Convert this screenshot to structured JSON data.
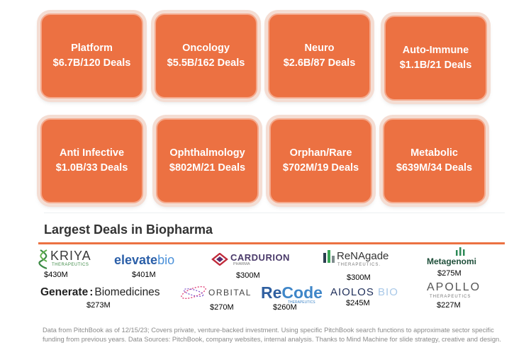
{
  "sectors": [
    {
      "name": "Platform",
      "value": "$6.7B/120 Deals"
    },
    {
      "name": "Oncology",
      "value": "$5.5B/162 Deals"
    },
    {
      "name": "Neuro",
      "value": "$2.6B/87 Deals"
    },
    {
      "name": "Auto-Immune",
      "value": "$1.1B/21 Deals"
    },
    {
      "name": "Anti Infective",
      "value": "$1.0B/33 Deals"
    },
    {
      "name": "Ophthalmology",
      "value": "$802M/21 Deals"
    },
    {
      "name": "Orphan/Rare",
      "value": "$702M/19 Deals"
    },
    {
      "name": "Metabolic",
      "value": "$639M/34 Deals"
    }
  ],
  "deals_title": "Largest Deals in Biopharma",
  "deals": [
    {
      "name": "KRIYA",
      "sub": "THERAPEUTICS",
      "amount": "$430M"
    },
    {
      "name_a": "elevate",
      "name_b": "bio",
      "amount": "$401M"
    },
    {
      "name": "CARDURION",
      "sub": "PHARMA",
      "amount": "$300M"
    },
    {
      "name_a": "ReNAgade",
      "sub": "THERAPEUTICS.",
      "amount": "$300M"
    },
    {
      "name": "Metagenomi",
      "amount": "$275M"
    },
    {
      "name_a": "Generate",
      "name_b": "Biomedicines",
      "amount": "$273M"
    },
    {
      "name": "ORBITAL",
      "amount": "$270M"
    },
    {
      "name_a": "Re",
      "name_b": "Code",
      "sub": "THERAPEUTICS",
      "amount": "$260M"
    },
    {
      "name_a": "AIOLOS",
      "name_b": "BIO",
      "amount": "$245M"
    },
    {
      "name": "APOLLO",
      "sub": "THERAPEUTICS",
      "amount": "$227M"
    }
  ],
  "footnote": "Data from PitchBook as of 12/15/23; Covers private, venture-backed investment. Using specific PitchBook search functions to approximate sector specific funding from previous years. Data Sources: PitchBook, company websites, internal analysis. Thanks to Mind Machine for slide strategy, creative and design.",
  "colors": {
    "tile": "#ec7142",
    "accent": "#ec7142",
    "text": "#333333",
    "footnote": "#8a8a8a"
  }
}
